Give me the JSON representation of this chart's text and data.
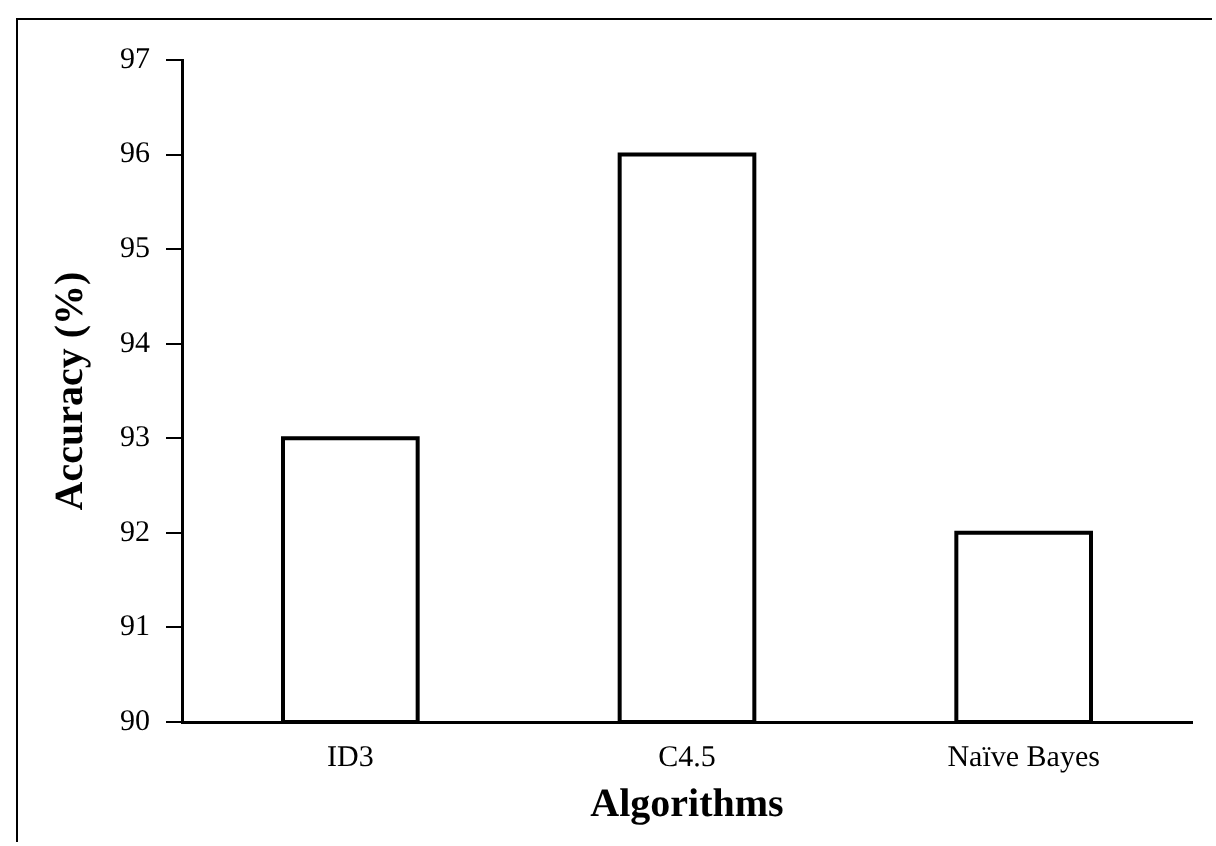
{
  "chart_data": {
    "type": "bar",
    "xlabel": "Algorithms",
    "ylabel": "Accuracy (%)",
    "categories": [
      "ID3",
      "C4.5",
      "Naïve Bayes"
    ],
    "values": [
      93,
      96,
      92
    ],
    "color": "#000000",
    "ylim": [
      90,
      97
    ],
    "yticks": [
      90,
      91,
      92,
      93,
      94,
      95,
      96,
      97
    ],
    "grid": false,
    "legend": false
  }
}
